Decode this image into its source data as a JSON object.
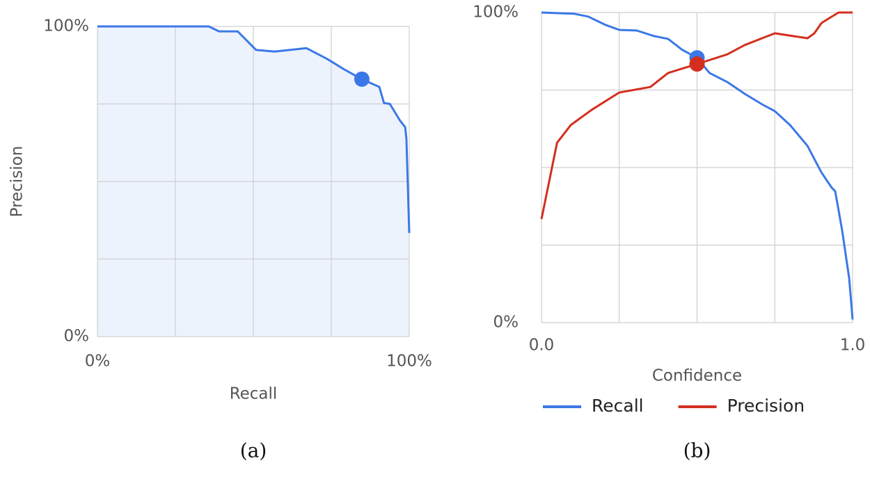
{
  "chart_data": [
    {
      "type": "line",
      "area": true,
      "area_color": "#edf3fc",
      "xlabel": "Recall",
      "ylabel": "Precision",
      "caption": "(a)",
      "xlim": [
        0,
        100
      ],
      "ylim": [
        0,
        100
      ],
      "xticks": [
        {
          "value": 0,
          "label": "0%"
        },
        {
          "value": 100,
          "label": "100%"
        }
      ],
      "yticks": [
        {
          "value": 0,
          "label": "0%"
        },
        {
          "value": 100,
          "label": "100%"
        }
      ],
      "xgrid": [
        0,
        25,
        50,
        75,
        100
      ],
      "ygrid": [
        0,
        25,
        50,
        75,
        100
      ],
      "series": [
        {
          "color": "#3b78e7",
          "x": [
            0,
            35.7,
            39,
            45,
            50.9,
            56.9,
            67,
            73.7,
            79.2,
            84.8,
            90.4,
            91.9,
            93.8,
            97,
            98.7,
            99.1,
            100
          ],
          "values": [
            100,
            100,
            98.4,
            98.4,
            92.4,
            91.9,
            93,
            89.5,
            86.1,
            83,
            80.5,
            75.3,
            75,
            69.7,
            67.5,
            63.7,
            33.4
          ]
        }
      ],
      "markers": [
        {
          "x": 84.8,
          "y": 83,
          "color": "#3b78e7"
        }
      ]
    },
    {
      "type": "line",
      "xlabel": "Confidence",
      "caption": "(b)",
      "legend": "bottom",
      "xlim": [
        0,
        1
      ],
      "ylim": [
        0,
        100
      ],
      "xticks": [
        {
          "value": 0,
          "label": "0.0"
        },
        {
          "value": 1,
          "label": "1.0"
        }
      ],
      "yticks": [
        {
          "value": 0,
          "label": "0%"
        },
        {
          "value": 100,
          "label": "100%"
        }
      ],
      "xgrid": [
        0,
        0.25,
        0.5,
        0.75,
        1
      ],
      "ygrid": [
        0,
        25,
        50,
        75,
        100
      ],
      "series": [
        {
          "name": "Recall",
          "color": "#3b78e7",
          "x": [
            0,
            0.05,
            0.105,
            0.15,
            0.206,
            0.25,
            0.306,
            0.362,
            0.407,
            0.452,
            0.5,
            0.54,
            0.597,
            0.653,
            0.709,
            0.75,
            0.799,
            0.855,
            0.9,
            0.933,
            0.944,
            0.966,
            0.989,
            1
          ],
          "values": [
            100,
            99.8,
            99.6,
            98.7,
            96,
            94.4,
            94.2,
            92.4,
            91.5,
            88,
            85.4,
            80.5,
            77.6,
            73.8,
            70.4,
            68.2,
            63.7,
            57,
            48.4,
            43.5,
            42.4,
            30,
            14.3,
            1
          ]
        },
        {
          "name": "Precision",
          "color": "#d32f1f",
          "x": [
            0,
            0.05,
            0.094,
            0.161,
            0.25,
            0.35,
            0.407,
            0.5,
            0.597,
            0.653,
            0.75,
            0.855,
            0.877,
            0.9,
            0.922,
            0.955,
            1
          ],
          "values": [
            33.4,
            58,
            63.7,
            68.6,
            74.2,
            76,
            80.5,
            83.4,
            86.5,
            89.5,
            93.3,
            91.7,
            93.3,
            96.6,
            98,
            100,
            100
          ]
        }
      ],
      "markers": [
        {
          "x": 0.5,
          "y": 85.4,
          "color": "#3b78e7"
        },
        {
          "x": 0.5,
          "y": 83.4,
          "color": "#d32f1f"
        }
      ]
    }
  ]
}
